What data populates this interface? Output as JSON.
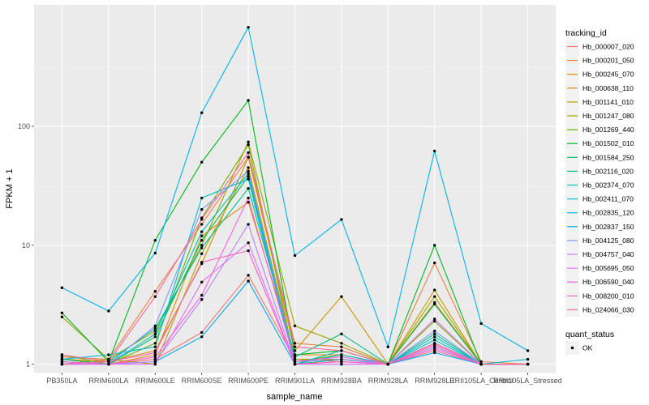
{
  "chart_data": {
    "type": "line",
    "xlabel": "sample_name",
    "ylabel": "FPKM + 1",
    "y_scale": "log10",
    "ylim": [
      0.85,
      1050
    ],
    "y_ticks": [
      {
        "value": 1,
        "label": "1"
      },
      {
        "value": 10,
        "label": "10"
      },
      {
        "value": 100,
        "label": "100"
      }
    ],
    "categories": [
      "PB350LA",
      "RRIM600LA",
      "RRIM600LE",
      "RRIM600SE",
      "RRIM600PE",
      "RRIM901LA",
      "RRIM928BA",
      "RRIM928LA",
      "RRIM928LE",
      "RRII105LA_Control",
      "RRII105LA_Stressed"
    ],
    "grid": true,
    "legend": {
      "title": "tracking_id",
      "position": "right",
      "status_title": "quant_status",
      "status_label": "OK"
    },
    "series": [
      {
        "name": "Hb_000007_020",
        "color": "#F8766D",
        "values": [
          1.05,
          1.0,
          1.1,
          1.85,
          5.6,
          1.1,
          1.05,
          1.0,
          1.3,
          1.0,
          1.0
        ]
      },
      {
        "name": "Hb_000201_050",
        "color": "#EE8042",
        "values": [
          1.15,
          1.1,
          4.1,
          15.0,
          55.0,
          1.5,
          1.4,
          1.0,
          7.1,
          1.05,
          1.0
        ]
      },
      {
        "name": "Hb_000245_070",
        "color": "#E08B00",
        "values": [
          1.0,
          1.0,
          1.2,
          12.0,
          23.0,
          1.2,
          1.2,
          1.0,
          3.3,
          1.0,
          1.0
        ]
      },
      {
        "name": "Hb_000638_110",
        "color": "#CF9400",
        "values": [
          1.1,
          1.05,
          1.3,
          7.0,
          55.0,
          1.3,
          3.7,
          1.0,
          4.2,
          1.0,
          1.0
        ]
      },
      {
        "name": "Hb_001141_010",
        "color": "#B79F00",
        "values": [
          1.0,
          1.1,
          1.0,
          8.5,
          45.0,
          1.1,
          1.1,
          1.0,
          1.5,
          1.0,
          1.0
        ]
      },
      {
        "name": "Hb_001247_080",
        "color": "#9CA700",
        "values": [
          2.5,
          1.1,
          1.9,
          10.0,
          74.0,
          2.1,
          1.5,
          1.0,
          3.7,
          1.0,
          1.0
        ]
      },
      {
        "name": "Hb_001269_440",
        "color": "#72B000",
        "values": [
          1.2,
          1.0,
          1.5,
          17.0,
          70.0,
          1.05,
          1.2,
          1.0,
          2.3,
          1.0,
          1.0
        ]
      },
      {
        "name": "Hb_001502_010",
        "color": "#00B81F",
        "values": [
          2.7,
          1.05,
          11.0,
          50.0,
          165.0,
          1.2,
          1.3,
          1.0,
          10.0,
          1.0,
          1.0
        ]
      },
      {
        "name": "Hb_001584_250",
        "color": "#00BC59",
        "values": [
          1.1,
          1.0,
          1.7,
          11.0,
          38.0,
          1.0,
          1.1,
          1.0,
          3.2,
          1.0,
          1.0
        ]
      },
      {
        "name": "Hb_002116_020",
        "color": "#00C08B",
        "values": [
          1.0,
          1.05,
          2.0,
          9.5,
          30.0,
          1.15,
          1.8,
          1.0,
          1.8,
          1.0,
          1.0
        ]
      },
      {
        "name": "Hb_002374_070",
        "color": "#00C0B5",
        "values": [
          1.05,
          1.0,
          1.8,
          13.0,
          40.0,
          1.0,
          1.3,
          1.0,
          1.7,
          1.0,
          1.0
        ]
      },
      {
        "name": "Hb_002411_070",
        "color": "#00BDD5",
        "values": [
          1.1,
          1.2,
          1.4,
          25.0,
          36.0,
          1.0,
          1.2,
          1.0,
          1.6,
          1.0,
          1.1
        ]
      },
      {
        "name": "Hb_002835_120",
        "color": "#00B5EE",
        "values": [
          4.4,
          2.8,
          8.6,
          130.0,
          680.0,
          8.2,
          16.5,
          1.4,
          62.0,
          2.2,
          1.3
        ]
      },
      {
        "name": "Hb_002837_150",
        "color": "#00A7FF",
        "values": [
          1.0,
          1.0,
          1.05,
          1.7,
          5.0,
          1.0,
          1.0,
          1.0,
          1.25,
          1.0,
          1.0
        ]
      },
      {
        "name": "Hb_004125_080",
        "color": "#7F96FF",
        "values": [
          1.05,
          1.0,
          2.1,
          20.0,
          42.0,
          1.05,
          1.1,
          1.0,
          1.9,
          1.0,
          1.0
        ]
      },
      {
        "name": "Hb_004757_040",
        "color": "#BC81FF",
        "values": [
          1.0,
          1.0,
          1.05,
          3.5,
          15.0,
          1.0,
          1.05,
          1.0,
          1.4,
          1.0,
          1.0
        ]
      },
      {
        "name": "Hb_005695_050",
        "color": "#E26EF7",
        "values": [
          1.0,
          1.0,
          1.0,
          4.9,
          10.5,
          1.0,
          1.0,
          1.0,
          2.4,
          1.0,
          1.0
        ]
      },
      {
        "name": "Hb_006590_040",
        "color": "#F863DF",
        "values": [
          1.05,
          1.0,
          1.15,
          3.8,
          25.0,
          1.05,
          1.15,
          1.0,
          1.35,
          1.0,
          1.0
        ]
      },
      {
        "name": "Hb_008200_010",
        "color": "#FF62BF",
        "values": [
          1.0,
          1.05,
          1.25,
          7.2,
          9.0,
          1.0,
          1.05,
          1.0,
          1.5,
          1.0,
          1.0
        ]
      },
      {
        "name": "Hb_024066_030",
        "color": "#FF6A98",
        "values": [
          1.2,
          1.05,
          3.7,
          16.5,
          60.0,
          1.4,
          1.3,
          1.0,
          1.45,
          1.0,
          1.0
        ]
      }
    ]
  }
}
